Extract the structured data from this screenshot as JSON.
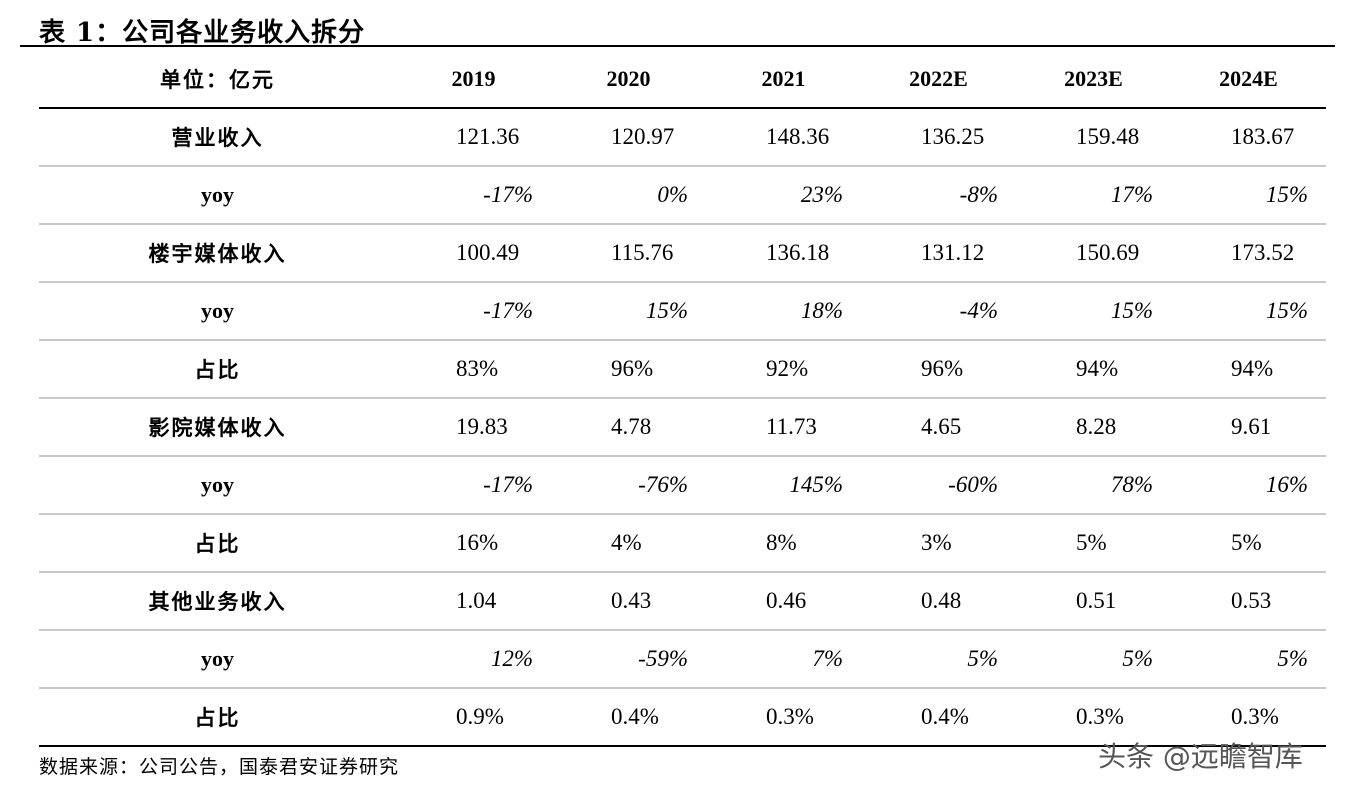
{
  "title": "表 1：公司各业务收入拆分",
  "header": {
    "label": "单位：亿元",
    "years": [
      "2019",
      "2020",
      "2021",
      "2022E",
      "2023E",
      "2024E"
    ]
  },
  "rows": [
    {
      "label": "营业收入",
      "kind": "num",
      "values": [
        "121.36",
        "120.97",
        "148.36",
        "136.25",
        "159.48",
        "183.67"
      ]
    },
    {
      "label": "yoy",
      "kind": "pct",
      "values": [
        "-17%",
        "0%",
        "23%",
        "-8%",
        "17%",
        "15%"
      ]
    },
    {
      "label": "楼宇媒体收入",
      "kind": "num",
      "values": [
        "100.49",
        "115.76",
        "136.18",
        "131.12",
        "150.69",
        "173.52"
      ]
    },
    {
      "label": "yoy",
      "kind": "pct",
      "values": [
        "-17%",
        "15%",
        "18%",
        "-4%",
        "15%",
        "15%"
      ]
    },
    {
      "label": "占比",
      "kind": "num",
      "values": [
        "83%",
        "96%",
        "92%",
        "96%",
        "94%",
        "94%"
      ]
    },
    {
      "label": "影院媒体收入",
      "kind": "num",
      "values": [
        "19.83",
        "4.78",
        "11.73",
        "4.65",
        "8.28",
        "9.61"
      ]
    },
    {
      "label": "yoy",
      "kind": "pct",
      "values": [
        "-17%",
        "-76%",
        "145%",
        "-60%",
        "78%",
        "16%"
      ]
    },
    {
      "label": "占比",
      "kind": "num",
      "values": [
        "16%",
        "4%",
        "8%",
        "3%",
        "5%",
        "5%"
      ]
    },
    {
      "label": "其他业务收入",
      "kind": "num",
      "values": [
        "1.04",
        "0.43",
        "0.46",
        "0.48",
        "0.51",
        "0.53"
      ]
    },
    {
      "label": "yoy",
      "kind": "pct",
      "values": [
        "12%",
        "-59%",
        "7%",
        "5%",
        "5%",
        "5%"
      ]
    },
    {
      "label": "占比",
      "kind": "num",
      "values": [
        "0.9%",
        "0.4%",
        "0.3%",
        "0.4%",
        "0.3%",
        "0.3%"
      ]
    }
  ],
  "source": "数据来源：公司公告，国泰君安证券研究",
  "watermark": "头条 @远瞻智库"
}
